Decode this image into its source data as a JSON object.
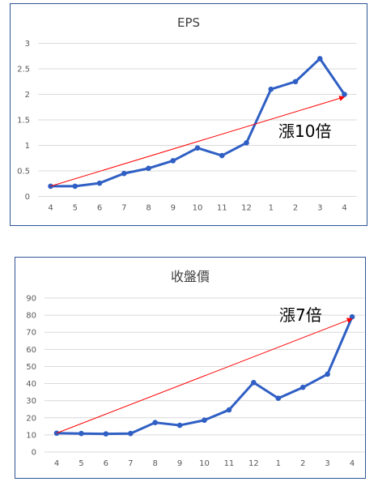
{
  "chart_data": [
    {
      "type": "line",
      "title": "EPS",
      "categories": [
        "4",
        "5",
        "6",
        "7",
        "8",
        "9",
        "10",
        "11",
        "12",
        "1",
        "2",
        "3",
        "4"
      ],
      "series": [
        {
          "values": [
            0.2,
            0.2,
            0.26,
            0.45,
            0.55,
            0.7,
            0.95,
            0.8,
            1.05,
            2.1,
            2.25,
            2.7,
            2.0
          ]
        }
      ],
      "ylim": [
        0,
        3
      ],
      "yticks": [
        "0",
        "0.5",
        "1",
        "1.5",
        "2",
        "2.5",
        "3"
      ],
      "grid": true,
      "trend_arrow": {
        "from": [
          0,
          0.2
        ],
        "to": [
          12,
          1.95
        ]
      },
      "annotation": "漲10倍",
      "colors": {
        "line": "#2f5fc4",
        "arrow": "#ff0000",
        "grid": "#d9d9d9"
      }
    },
    {
      "type": "line",
      "title": "收盤價",
      "categories": [
        "4",
        "5",
        "6",
        "7",
        "8",
        "9",
        "10",
        "11",
        "12",
        "1",
        "2",
        "3",
        "4"
      ],
      "series": [
        {
          "values": [
            11,
            10.8,
            10.6,
            10.8,
            17.2,
            15.6,
            18.6,
            24.6,
            40.6,
            31.4,
            37.8,
            45.5,
            79
          ]
        }
      ],
      "ylim": [
        0,
        90
      ],
      "yticks": [
        "0",
        "10",
        "20",
        "30",
        "40",
        "50",
        "60",
        "70",
        "80",
        "90"
      ],
      "grid": true,
      "trend_arrow": {
        "from": [
          0,
          11
        ],
        "to": [
          12,
          78
        ]
      },
      "annotation": "漲7倍",
      "colors": {
        "line": "#2f5fc4",
        "arrow": "#ff0000",
        "grid": "#d9d9d9"
      }
    }
  ]
}
